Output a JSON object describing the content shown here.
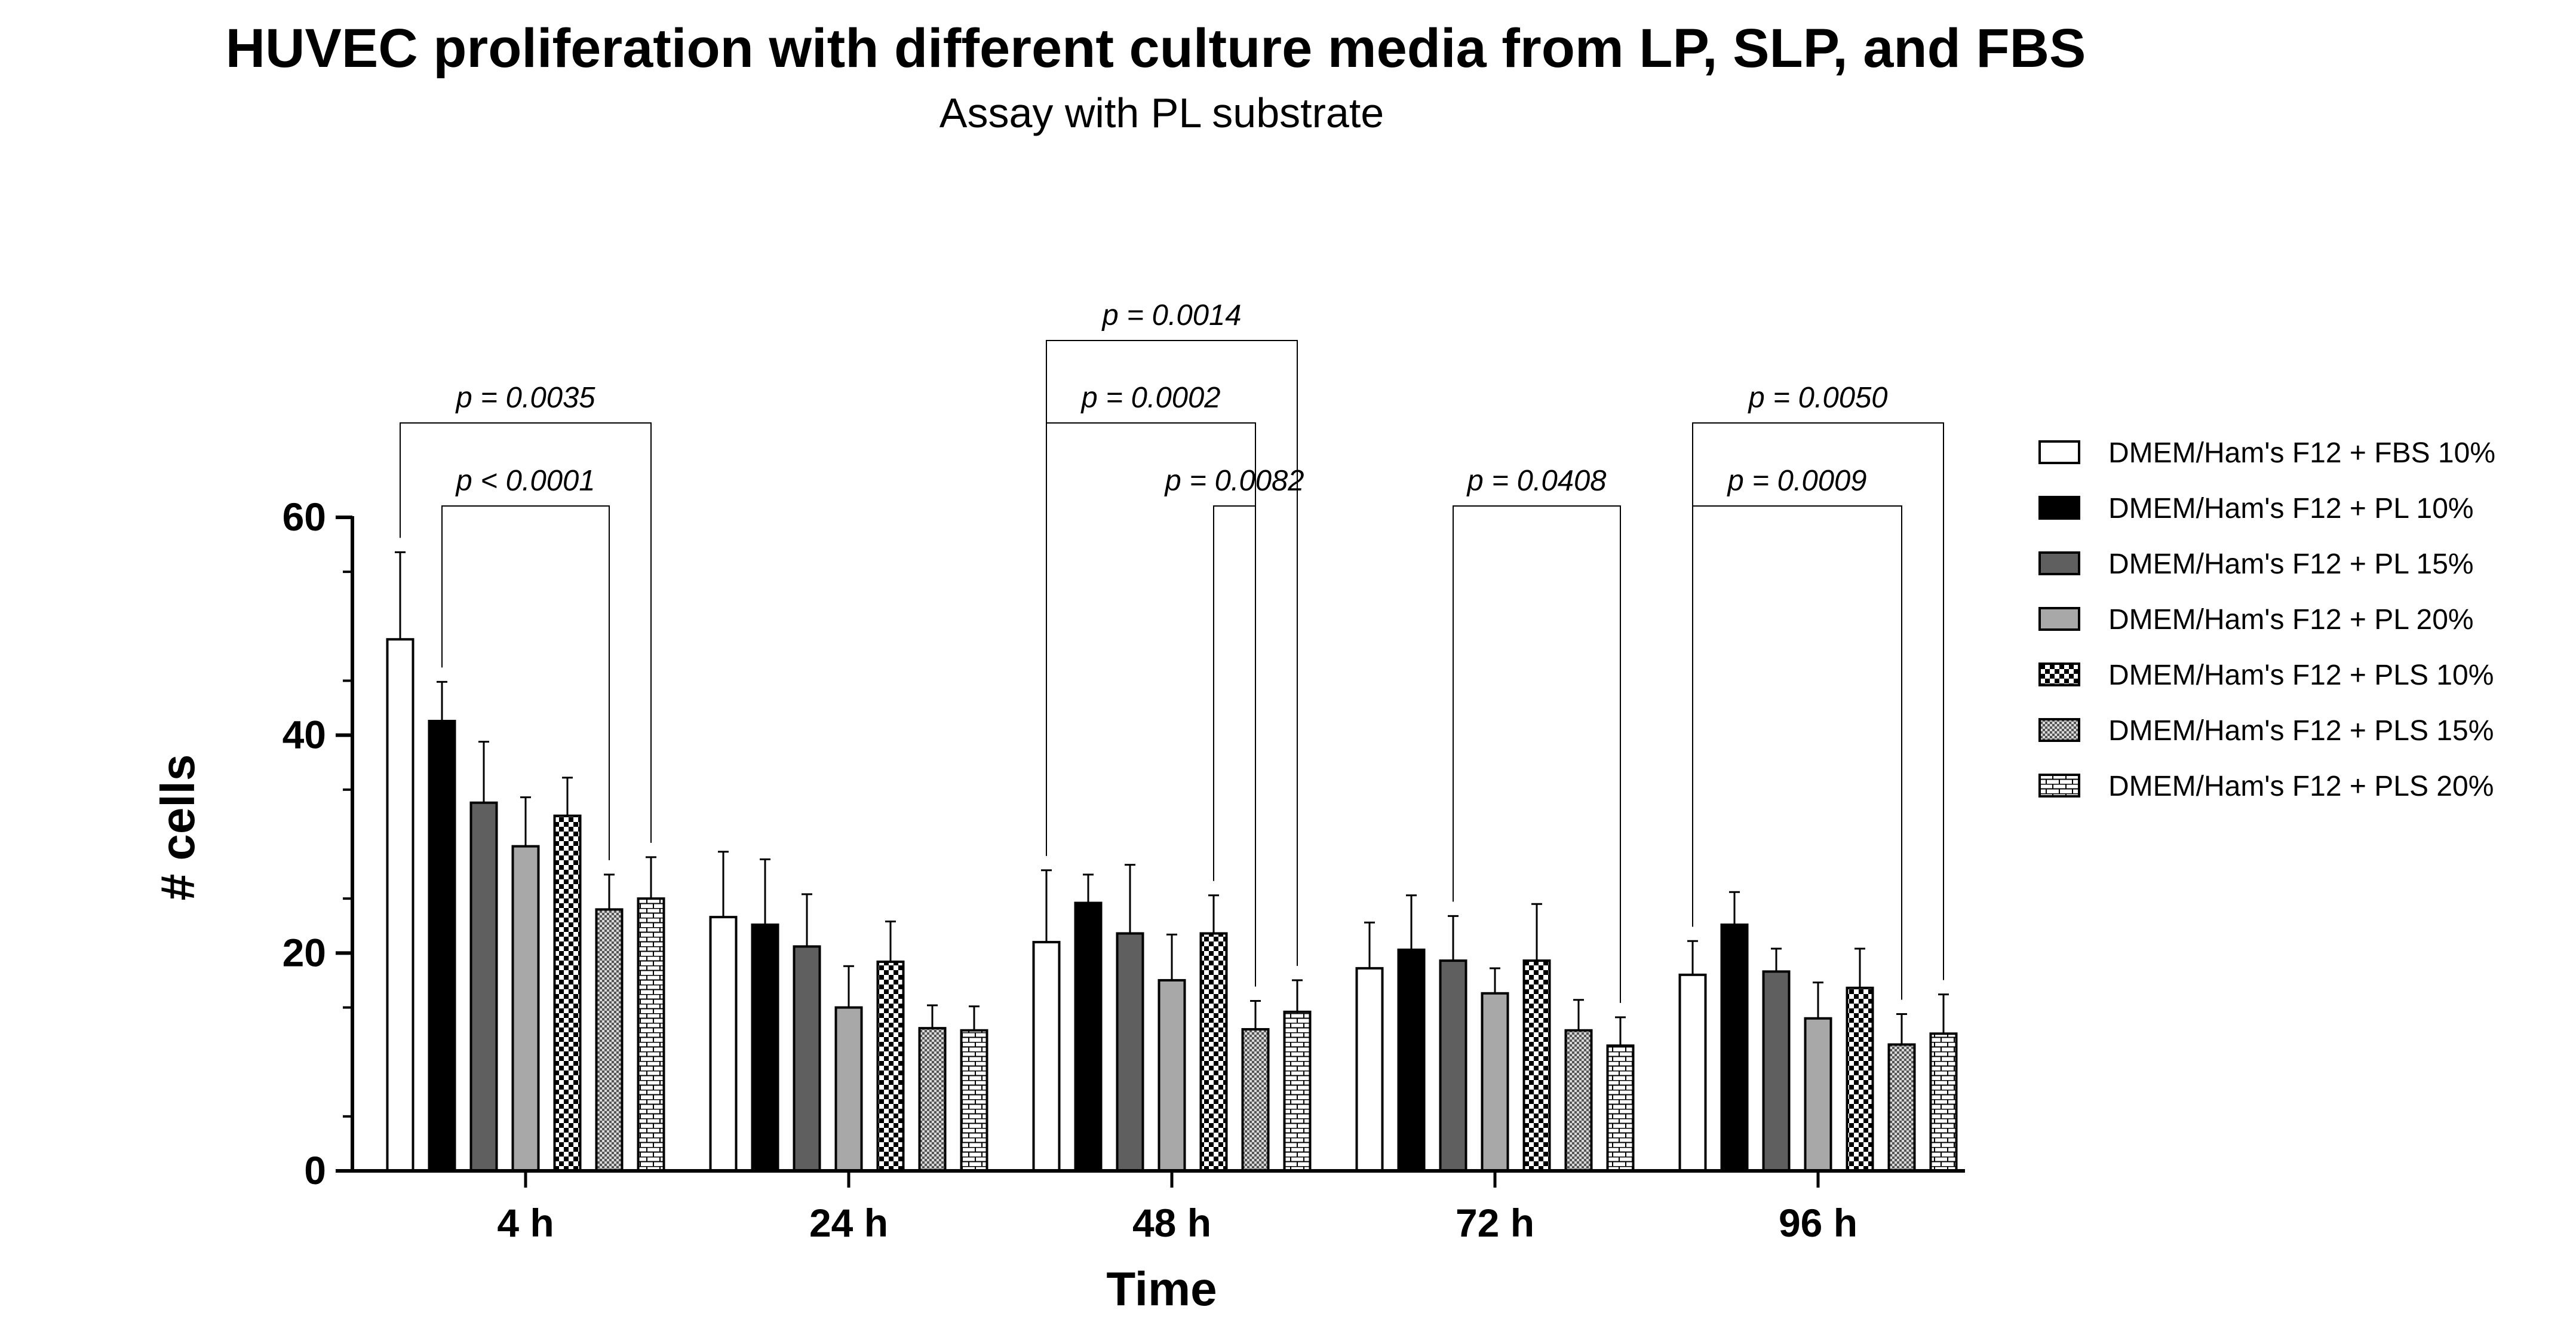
{
  "chart_data": {
    "type": "bar",
    "title": "HUVEC proliferation with different culture media from LP, SLP, and FBS",
    "subtitle": "Assay with PL substrate",
    "xlabel": "Time",
    "ylabel": "# cells",
    "ylim": [
      0,
      60
    ],
    "yticks": [
      0,
      20,
      40,
      60
    ],
    "categories": [
      "4 h",
      "24 h",
      "48 h",
      "72 h",
      "96 h"
    ],
    "legend_position": "right",
    "series": [
      {
        "name": "DMEM/Ham's F12 + FBS 10%",
        "pattern": "white",
        "values": [
          48.8,
          23.3,
          21.0,
          18.6,
          18.0
        ],
        "errors": [
          8.0,
          6.0,
          6.6,
          4.2,
          3.1
        ]
      },
      {
        "name": "DMEM/Ham's F12 + PL 10%",
        "pattern": "black",
        "values": [
          41.3,
          22.6,
          24.6,
          20.3,
          22.6
        ],
        "errors": [
          3.6,
          6.0,
          2.6,
          5.0,
          3.0
        ]
      },
      {
        "name": "DMEM/Ham's F12 + PL 15%",
        "pattern": "darkgray",
        "values": [
          33.8,
          20.6,
          21.8,
          19.3,
          18.3
        ],
        "errors": [
          5.6,
          4.8,
          6.3,
          4.1,
          2.1
        ]
      },
      {
        "name": "DMEM/Ham's F12 + PL 20%",
        "pattern": "lightgray",
        "values": [
          29.8,
          15.0,
          17.5,
          16.3,
          14.0
        ],
        "errors": [
          4.5,
          3.8,
          4.2,
          2.3,
          3.3
        ]
      },
      {
        "name": "DMEM/Ham's F12 + PLS 10%",
        "pattern": "checker",
        "values": [
          32.6,
          19.2,
          21.8,
          19.3,
          16.8
        ],
        "errors": [
          3.5,
          3.7,
          3.5,
          5.2,
          3.6
        ]
      },
      {
        "name": "DMEM/Ham's F12 + PLS 15%",
        "pattern": "finecheck",
        "values": [
          24.0,
          13.1,
          13.0,
          12.9,
          11.6
        ],
        "errors": [
          3.2,
          2.1,
          2.6,
          2.8,
          2.8
        ]
      },
      {
        "name": "DMEM/Ham's F12 + PLS 20%",
        "pattern": "brick",
        "values": [
          25.0,
          12.9,
          14.6,
          11.5,
          12.6
        ],
        "errors": [
          3.8,
          2.2,
          2.9,
          2.6,
          3.6
        ]
      }
    ],
    "annotations": [
      {
        "label": "p = 0.0035",
        "category": 0,
        "from_series": 0,
        "to_series": 6,
        "level": 2
      },
      {
        "label": "p < 0.0001",
        "category": 0,
        "from_series": 1,
        "to_series": 5,
        "level": 1
      },
      {
        "label": "p = 0.0014",
        "category": 2,
        "from_series": 0,
        "to_series": 6,
        "level": 3
      },
      {
        "label": "p = 0.0002",
        "category": 2,
        "from_series": 0,
        "to_series": 5,
        "level": 2
      },
      {
        "label": "p = 0.0082",
        "category": 2,
        "from_series": 4,
        "to_series": 5,
        "level": 1
      },
      {
        "label": "p = 0.0408",
        "category": 3,
        "from_series": 2,
        "to_series": 6,
        "level": 1
      },
      {
        "label": "p = 0.0050",
        "category": 4,
        "from_series": 0,
        "to_series": 6,
        "level": 2
      },
      {
        "label": "p = 0.0009",
        "category": 4,
        "from_series": 0,
        "to_series": 5,
        "level": 1
      }
    ]
  }
}
